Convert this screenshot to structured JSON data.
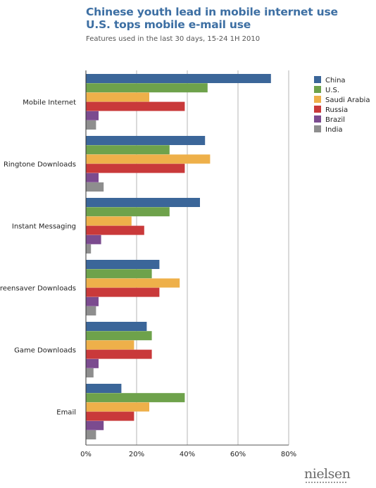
{
  "header": {
    "title_line1": "Chinese youth lead in mobile internet use",
    "title_line2": "U.S. tops mobile e-mail use",
    "subtitle": "Features used in the last 30 days, 15-24 1H 2010"
  },
  "logo_text": "nielsen",
  "chart_data": {
    "type": "bar",
    "orientation": "horizontal",
    "title": "Chinese youth lead in mobile internet use U.S. tops mobile e-mail use",
    "subtitle": "Features used in the last 30 days, 15-24 1H 2010",
    "categories": [
      "Mobile Internet",
      "Ringtone Downloads",
      "Instant Messaging",
      "Screensaver Downloads",
      "Game Downloads",
      "Email"
    ],
    "series": [
      {
        "name": "China",
        "color": "#3b6699",
        "values": [
          73,
          47,
          45,
          29,
          24,
          14
        ]
      },
      {
        "name": "U.S.",
        "color": "#6ea24b",
        "values": [
          48,
          33,
          33,
          26,
          26,
          39
        ]
      },
      {
        "name": "Saudi Arabia",
        "color": "#eeb04a",
        "values": [
          25,
          49,
          18,
          37,
          19,
          25
        ]
      },
      {
        "name": "Russia",
        "color": "#c9393a",
        "values": [
          39,
          39,
          23,
          29,
          26,
          19
        ]
      },
      {
        "name": "Brazil",
        "color": "#7b4b8f",
        "values": [
          5,
          5,
          6,
          5,
          5,
          7
        ]
      },
      {
        "name": "India",
        "color": "#8e8e8e",
        "values": [
          4,
          7,
          2,
          4,
          3,
          4
        ]
      }
    ],
    "xlim": [
      0,
      80
    ],
    "xticks": [
      "0%",
      "20%",
      "40%",
      "60%",
      "80%"
    ],
    "xtick_values": [
      0,
      20,
      40,
      60,
      80
    ],
    "grid": true,
    "legend": "top-right",
    "xlabel": "",
    "ylabel": ""
  }
}
